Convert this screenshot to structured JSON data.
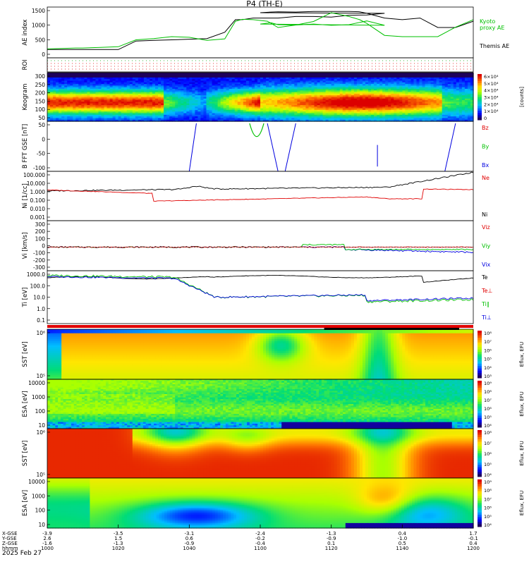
{
  "title": "P4 (TH-E)",
  "date_label": "2025 Feb 27",
  "colors": {
    "black": "#000000",
    "red": "#e00000",
    "green": "#00c000",
    "blue": "#0000e0"
  },
  "time_axis": {
    "ticks": [
      "1000",
      "1020",
      "1040",
      "1100",
      "1120",
      "1140",
      "1200"
    ],
    "row_labels": [
      "X-GSE",
      "Y-GSE",
      "Z-GSE",
      "hhmm"
    ],
    "rows": [
      [
        "-3.9",
        "-3.5",
        "-3.1",
        "-2.4",
        "-1.3",
        "0.4",
        "1.7"
      ],
      [
        "2.6",
        "1.5",
        "0.6",
        "-0.2",
        "-0.9",
        "-1.0",
        "-0.1"
      ],
      [
        "-1.6",
        "-1.3",
        "-0.9",
        "-0.4",
        "0.1",
        "0.5",
        "0.4"
      ]
    ]
  },
  "chart_data": [
    {
      "panel": "ae",
      "type": "line",
      "ylabel": "AE index",
      "yticks": [
        "1500",
        "1000",
        "500",
        "0"
      ],
      "ylim": [
        0,
        1500
      ],
      "x": [
        1000,
        1008,
        1010,
        1015,
        1020,
        1025,
        1030,
        1035,
        1040,
        1045,
        1050,
        1053,
        1055,
        1058,
        1062,
        1065,
        1070,
        1075,
        1080,
        1085,
        1090,
        1095,
        1100,
        1103,
        1105,
        1110,
        1115,
        1120,
        1125,
        1128,
        1130,
        1135,
        1140,
        1145,
        1150,
        1155,
        1200
      ],
      "series": [
        {
          "name": "Themis AE",
          "color": "#000000",
          "values": [
            150,
            150,
            150,
            150,
            150,
            420,
            440,
            460,
            480,
            500,
            700,
            1100,
            1100,
            1150,
            1150,
            1150,
            1200,
            1200,
            1180,
            1240,
            1250,
            1300,
            1320,
            1340,
            1350,
            1340,
            1360,
            1360,
            1360,
            1350,
            1300,
            1150,
            1100,
            1150,
            850,
            850,
            1050
          ]
        },
        {
          "name": "Kyoto proxy AE",
          "color": "#00c000",
          "values": [
            170,
            200,
            200,
            220,
            240,
            460,
            500,
            560,
            540,
            440,
            490,
            1050,
            1110,
            1100,
            1050,
            850,
            930,
            960,
            920,
            940,
            1060,
            920,
            960,
            1000,
            940,
            930,
            1040,
            1320,
            1200,
            1100,
            980,
            600,
            560,
            560,
            560,
            860,
            1100
          ]
        }
      ]
    },
    {
      "panel": "roi",
      "type": "table",
      "ylabel": "ROI"
    },
    {
      "panel": "keogram",
      "type": "heatmap",
      "ylabel": "Keogram",
      "yticks": [
        "300",
        "250",
        "200",
        "150",
        "100",
        "50"
      ],
      "colorbar_label": "[counts]",
      "colorbar_ticks": [
        "6×10⁴",
        "5×10⁴",
        "4×10⁴",
        "3×10⁴",
        "2×10⁴",
        "1×10⁴",
        "0"
      ]
    },
    {
      "panel": "bfft",
      "type": "line",
      "ylabel": "B FFT GSE [nT]",
      "yticks": [
        "50",
        "0",
        "-50",
        "-100"
      ],
      "ylim": [
        -100,
        100
      ],
      "legend": [
        "Bz",
        "By",
        "Bx"
      ]
    },
    {
      "panel": "ni",
      "type": "line",
      "ylabel": "Ni [1/cc]",
      "yticks": [
        "100.000",
        "10.000",
        "1.000",
        "0.100",
        "0.010",
        "0.001"
      ],
      "legend": [
        "Ne",
        "Ni"
      ]
    },
    {
      "panel": "vi",
      "type": "line",
      "ylabel": "Vi [km/s]",
      "yticks": [
        "300",
        "200",
        "100",
        "0",
        "-100",
        "-200",
        "-300"
      ],
      "ylim": [
        -300,
        300
      ],
      "legend": [
        "Viz",
        "Viy",
        "Vix"
      ]
    },
    {
      "panel": "ti",
      "type": "line",
      "ylabel": "Ti [eV]",
      "yticks": [
        "1000.0",
        "100.0",
        "10.0",
        "1.0",
        "0.1"
      ],
      "legend": [
        "Te",
        "Te⊥",
        "Ti∥",
        "Ti⊥"
      ]
    },
    {
      "panel": "sst1",
      "type": "heatmap",
      "ylabel": "SST [eV]",
      "yticks": [
        "10⁶",
        "10⁵"
      ],
      "colorbar_label": "Eflux, EFU",
      "colorbar_ticks": [
        "10⁸",
        "10⁷",
        "10⁶",
        "10⁵",
        "10⁴",
        "10³"
      ]
    },
    {
      "panel": "esa1",
      "type": "heatmap",
      "ylabel": "ESA [eV]",
      "yticks": [
        "10000",
        "1000",
        "100",
        "10"
      ],
      "colorbar_label": "Eflux, EFU",
      "colorbar_ticks": [
        "10⁹",
        "10⁸",
        "10⁷",
        "10⁶",
        "10⁵",
        "10⁴"
      ]
    },
    {
      "panel": "sst2",
      "type": "heatmap",
      "ylabel": "SST [eV]",
      "yticks": [
        "10⁶",
        "10⁵"
      ],
      "colorbar_label": "Eflux, EFU",
      "colorbar_ticks": [
        "10⁸",
        "10⁷",
        "10⁶",
        "10⁵",
        "10⁴"
      ]
    },
    {
      "panel": "esa2",
      "type": "heatmap",
      "ylabel": "ESA [eV]",
      "yticks": [
        "10000",
        "1000",
        "100",
        "10"
      ],
      "colorbar_label": "Eflux, EFU",
      "colorbar_ticks": [
        "10⁹",
        "10⁸",
        "10⁷",
        "10⁶",
        "10⁵",
        "10⁴"
      ]
    }
  ]
}
